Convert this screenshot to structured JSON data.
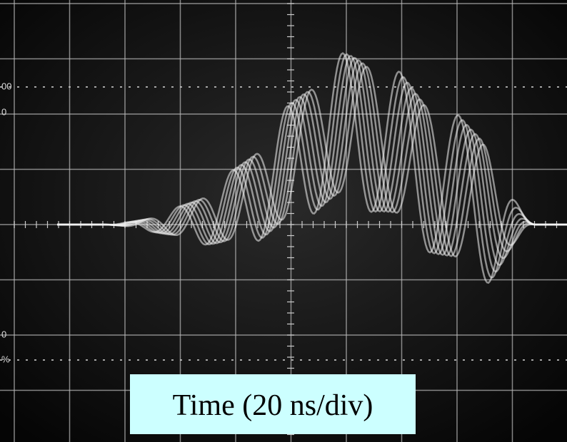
{
  "caption": "Time (20 ns/div)",
  "edge_labels": [
    "00",
    "0",
    "0",
    "%"
  ]
}
